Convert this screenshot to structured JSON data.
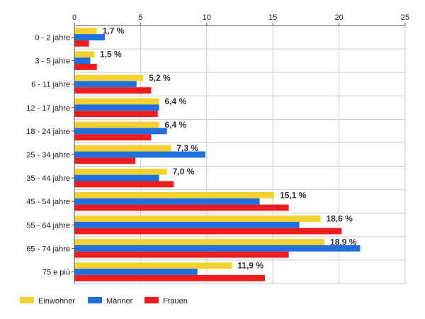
{
  "chart_data": {
    "type": "bar",
    "orientation": "horizontal",
    "categories": [
      "0 - 2 jahre",
      "3 - 5 jahre",
      "6 - 11 jahre",
      "12 - 17 jahre",
      "18 - 24 jahre",
      "25 - 34 jahre",
      "35 - 44 jahre",
      "45 - 54 jahre",
      "55 - 64 jahre",
      "65 - 74 jahre",
      "75 e più"
    ],
    "series": [
      {
        "name": "Einwohner",
        "color": "#f5d130",
        "values": [
          1.7,
          1.5,
          5.2,
          6.4,
          6.4,
          7.3,
          7.0,
          15.1,
          18.6,
          18.9,
          11.9
        ]
      },
      {
        "name": "Männer",
        "color": "#1f6fe0",
        "values": [
          2.3,
          1.2,
          4.7,
          6.4,
          7.0,
          9.9,
          6.4,
          14.0,
          17.0,
          21.6,
          9.3
        ]
      },
      {
        "name": "Frauen",
        "color": "#ee1c1c",
        "values": [
          1.1,
          1.7,
          5.8,
          6.3,
          5.8,
          4.6,
          7.5,
          16.2,
          20.2,
          16.2,
          14.4
        ]
      }
    ],
    "data_labels": [
      "1,7 %",
      "1,5 %",
      "5,2 %",
      "6,4 %",
      "6,4 %",
      "7,3 %",
      "7,0 %",
      "15,1 %",
      "18,6 %",
      "18,9 %",
      "11,9 %"
    ],
    "xlim": [
      0,
      25
    ],
    "x_ticks": [
      0,
      5,
      10,
      15,
      20,
      25
    ],
    "x_axis_position": "top",
    "grid": true,
    "legend_position": "bottom-left"
  }
}
